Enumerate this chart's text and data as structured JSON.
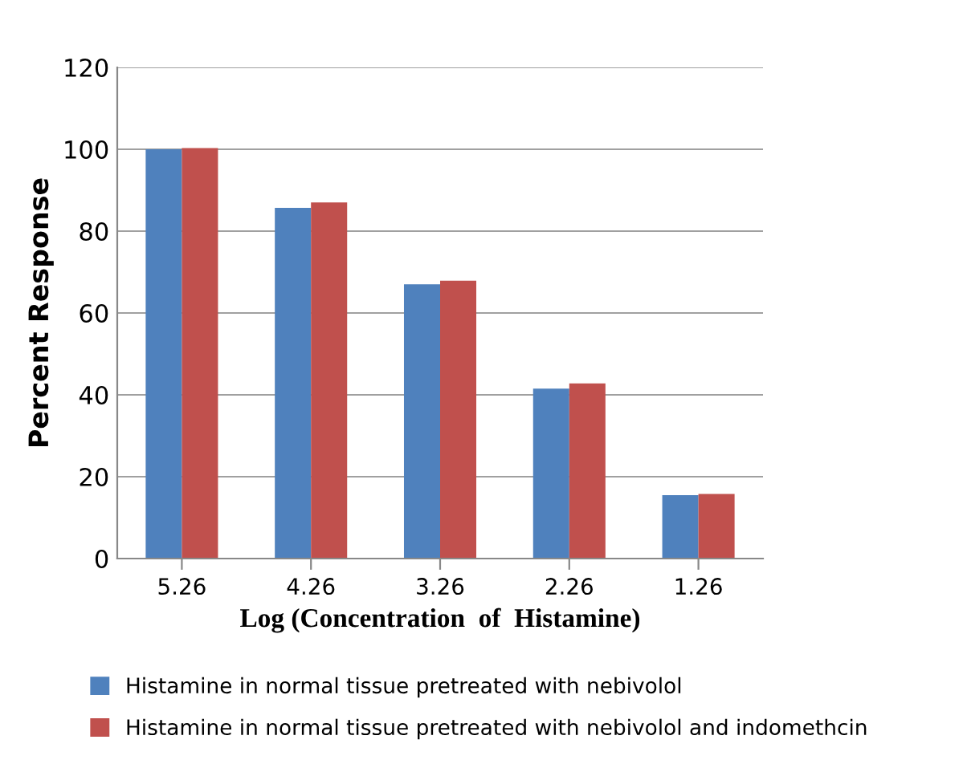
{
  "chart_data": {
    "type": "bar",
    "xlabel": "Log (Concentration  of  Histamine)",
    "ylabel": "Percent Response",
    "categories": [
      "5.26",
      "4.26",
      "3.26",
      "2.26",
      "1.26"
    ],
    "series": [
      {
        "name": "Histamine in normal tissue pretreated with nebivolol",
        "color": "#4f81bd",
        "values": [
          100,
          85.7,
          67,
          41.5,
          15.5
        ]
      },
      {
        "name": "Histamine in normal tissue pretreated with nebivolol and indomethcin",
        "color": "#c0504d",
        "values": [
          100.3,
          87,
          67.9,
          42.8,
          15.8
        ]
      }
    ],
    "ylim": [
      0,
      120
    ],
    "yticks": [
      0,
      20,
      40,
      60,
      80,
      100,
      120
    ],
    "grid": "y",
    "legend": "bottom"
  }
}
